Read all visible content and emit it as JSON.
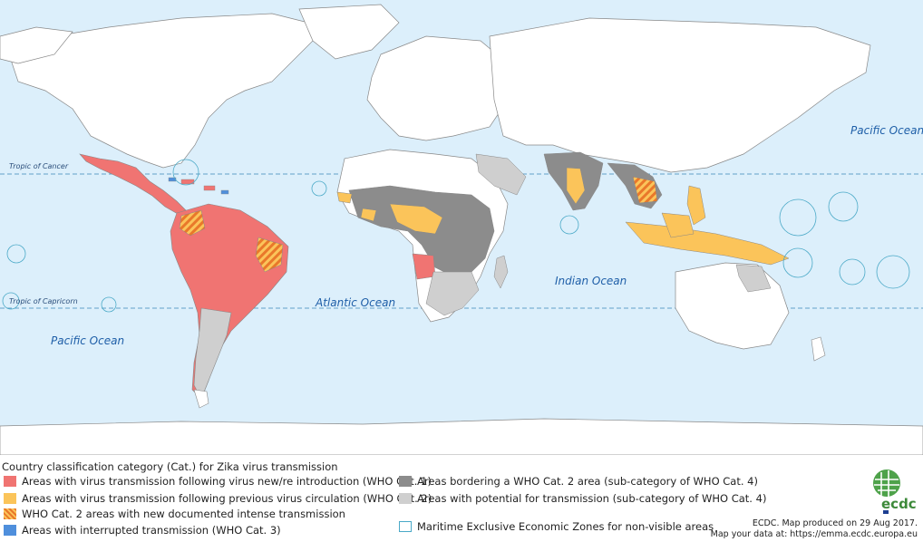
{
  "map": {
    "oceans": {
      "pacific_east": "Pacific Ocean",
      "pacific_west": "Pacific Ocean",
      "atlantic": "Atlantic Ocean",
      "indian": "Indian Ocean"
    },
    "lines": {
      "tropic_cancer": "Tropic of Cancer",
      "tropic_capricorn": "Tropic of Capricorn"
    },
    "colors": {
      "ocean": "#dceffb",
      "land": "#ffffff",
      "border": "#888888",
      "cat1": "#f07472",
      "cat2": "#fbc45a",
      "cat2_hatch": "#f0a43a",
      "cat3": "#4f8fdc",
      "bordering": "#8c8c8c",
      "potential": "#cfcfcf",
      "eez": "#4aa9c7"
    }
  },
  "legend": {
    "title": "Country classification category (Cat.) for Zika virus transmission",
    "items": [
      {
        "label": "Areas with virus transmission following virus new/re introduction (WHO Cat. 1)",
        "color": "#f07472"
      },
      {
        "label": "Areas with virus transmission following previous virus circulation (WHO Cat. 2)",
        "color": "#fbc45a"
      },
      {
        "label": "WHO Cat. 2 areas with new documented intense transmission",
        "color": "#f0a43a"
      },
      {
        "label": "Areas with interrupted transmission (WHO Cat. 3)",
        "color": "#4f8fdc"
      },
      {
        "label": "Areas bordering a WHO Cat. 2 area (sub-category of WHO Cat. 4)",
        "color": "#8c8c8c"
      },
      {
        "label": "Areas with potential for transmission (sub-category of WHO Cat. 4)",
        "color": "#cfcfcf"
      },
      {
        "label": "Maritime Exclusive Economic Zones for non-visible areas",
        "color": "#4aa9c7"
      }
    ]
  },
  "credits": {
    "line1": "ECDC. Map produced on 29 Aug 2017.",
    "line2": "Map your data at: https://emma.ecdc.europa.eu"
  },
  "logo": {
    "text": "ecdc"
  }
}
